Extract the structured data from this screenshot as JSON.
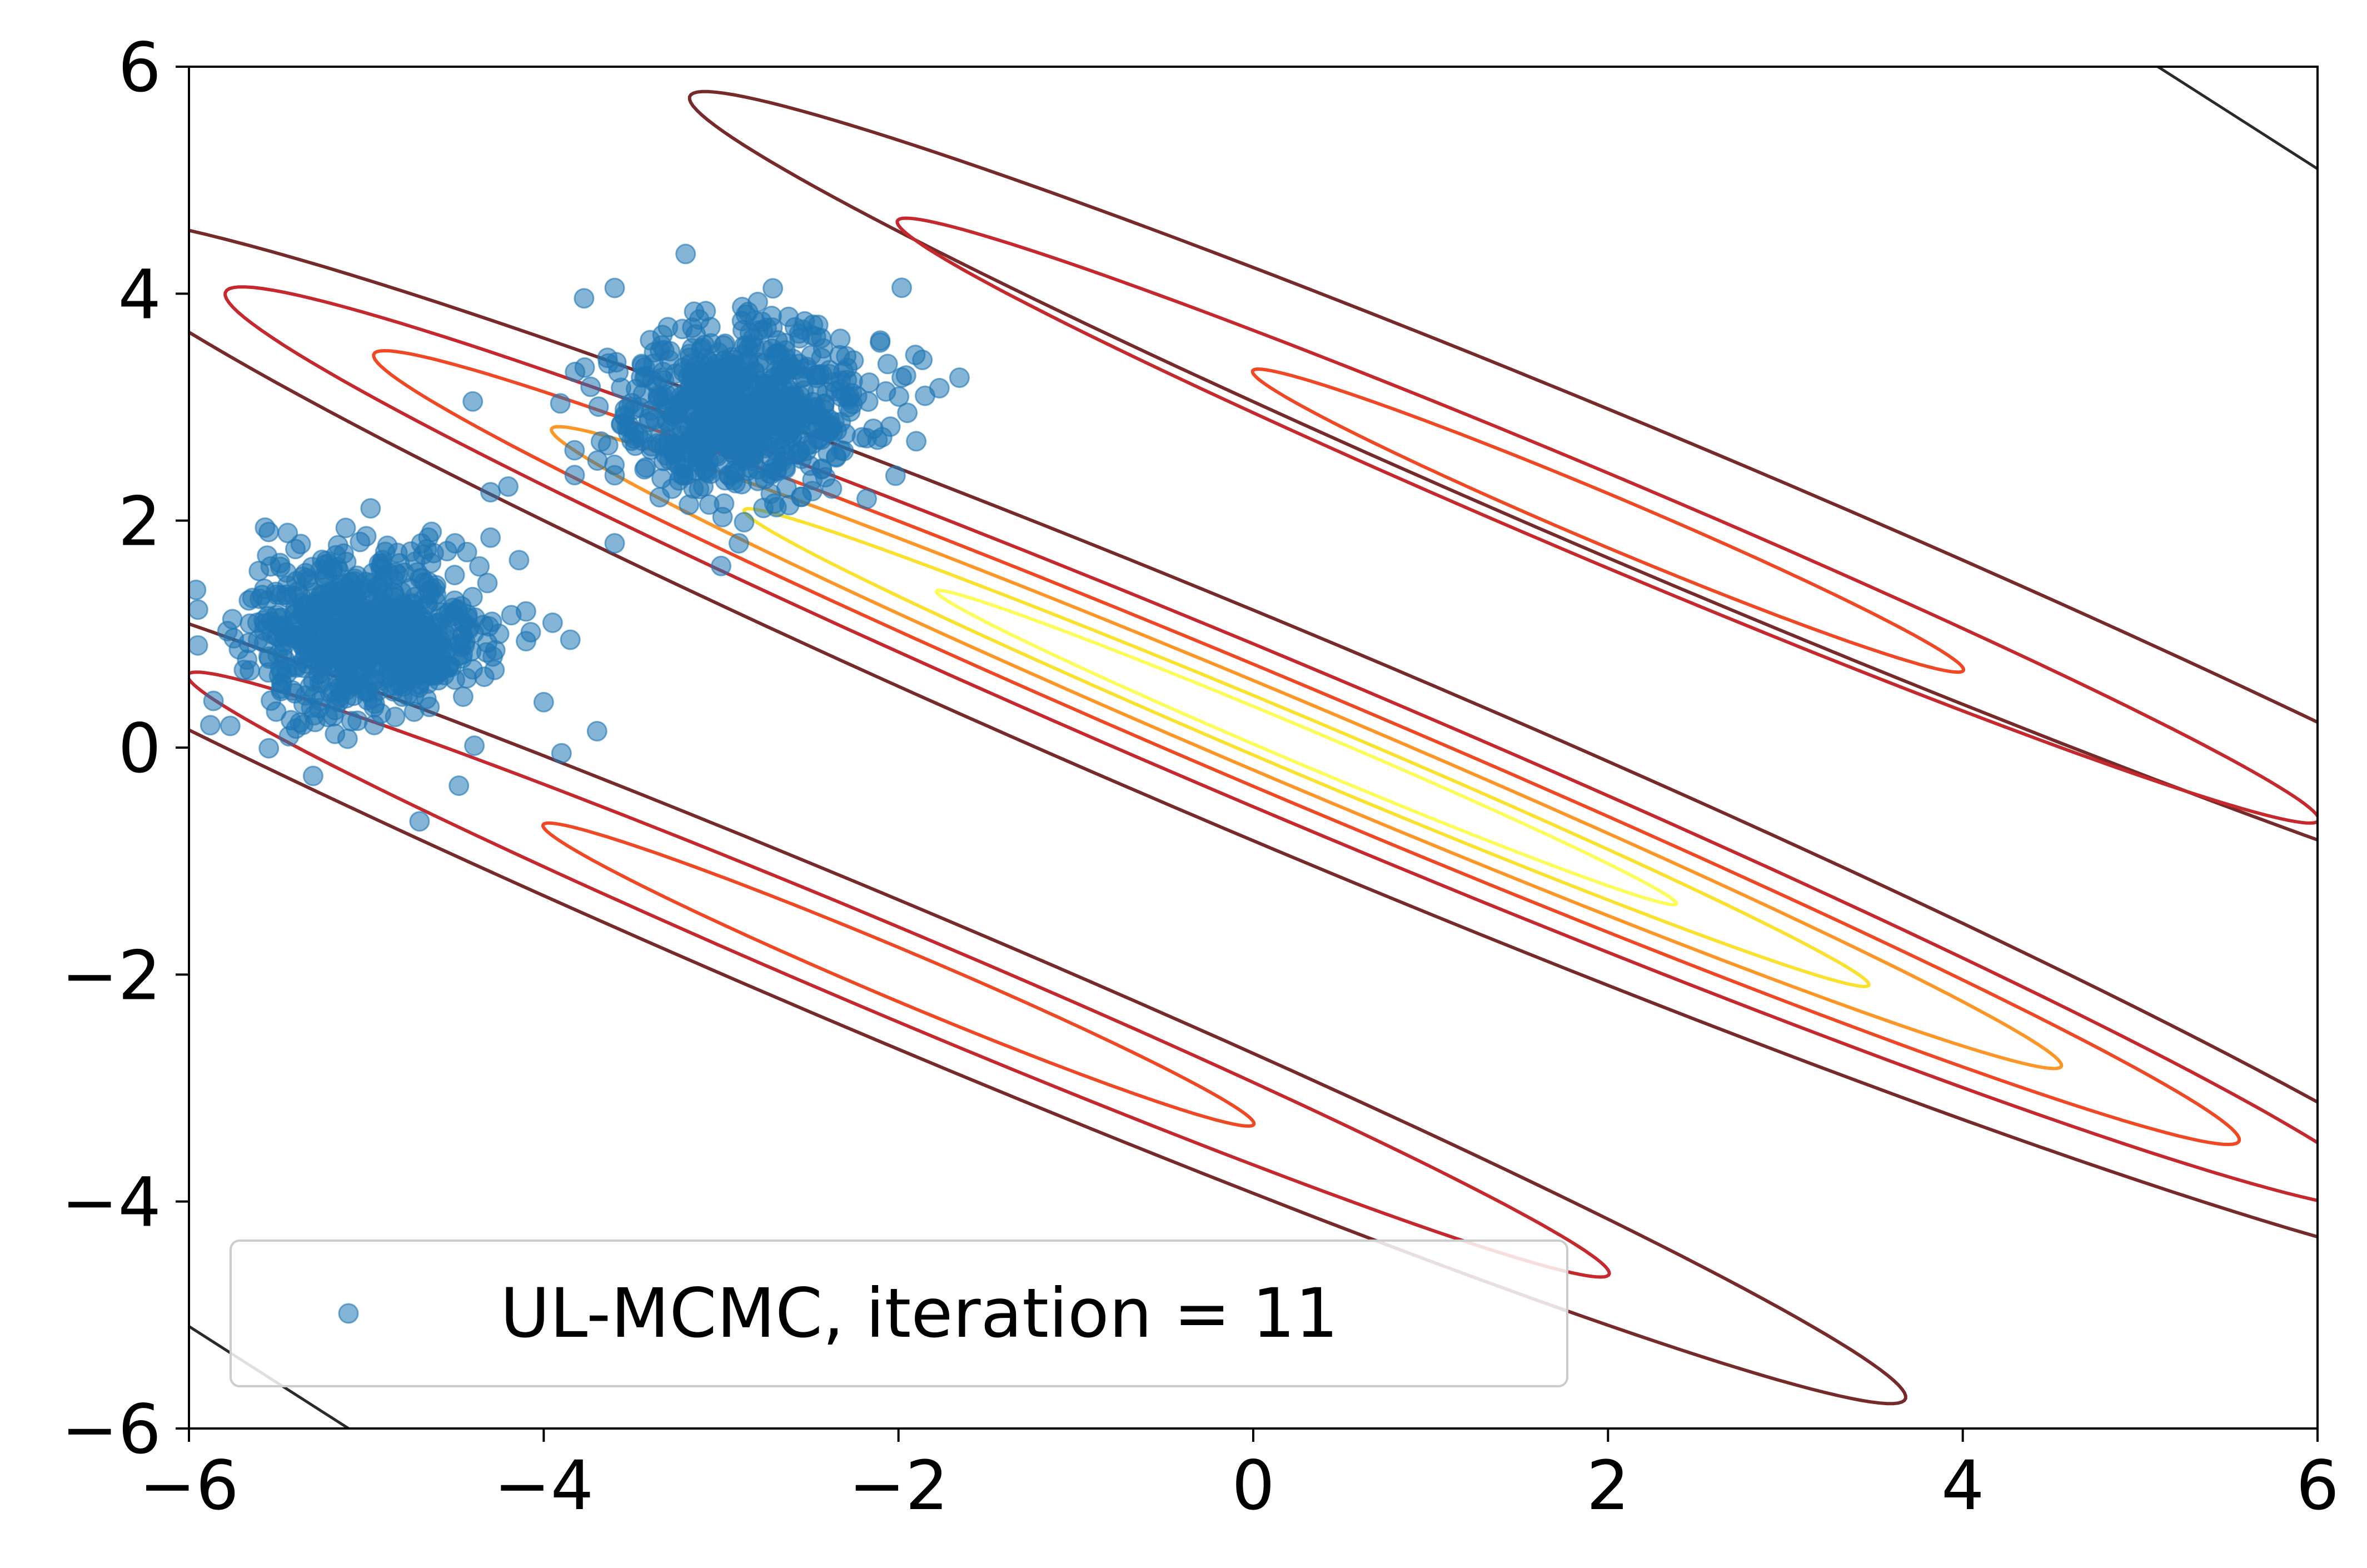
{
  "chart_data": {
    "type": "scatter",
    "title": "",
    "xlabel": "",
    "ylabel": "",
    "xlim": [
      -6,
      6
    ],
    "ylim": [
      -6,
      6
    ],
    "xticks": [
      -6,
      -4,
      -2,
      0,
      2,
      4,
      6
    ],
    "yticks": [
      -6,
      -4,
      -2,
      0,
      2,
      4,
      6
    ],
    "xtick_labels": [
      "−6",
      "−4",
      "−2",
      "0",
      "2",
      "4",
      "6"
    ],
    "ytick_labels": [
      "−6",
      "−4",
      "−2",
      "0",
      "2",
      "4",
      "6"
    ],
    "grid": false,
    "legend": {
      "position": "lower left",
      "entries": [
        "UL-MCMC, iteration = 11"
      ]
    },
    "series": [
      {
        "name": "UL-MCMC, iteration = 11",
        "type": "scatter",
        "color": "#1f77b4",
        "alpha": 0.55,
        "clusters": [
          {
            "center": [
              -5.0,
              1.0
            ],
            "spread": [
              0.35,
              0.35
            ],
            "count": 700
          },
          {
            "center": [
              -2.9,
              3.0
            ],
            "spread": [
              0.35,
              0.35
            ],
            "count": 700
          }
        ],
        "outliers": [
          [
            -5.95,
            0.9
          ],
          [
            -5.3,
            -0.25
          ],
          [
            -4.7,
            -0.65
          ],
          [
            -3.9,
            -0.05
          ],
          [
            -4.0,
            0.4
          ],
          [
            -3.2,
            4.35
          ],
          [
            -3.6,
            4.05
          ],
          [
            -3.0,
            1.6
          ],
          [
            -2.9,
            1.8
          ],
          [
            -1.95,
            2.95
          ],
          [
            -1.9,
            2.7
          ],
          [
            -1.85,
            3.1
          ],
          [
            -3.6,
            1.8
          ],
          [
            -4.3,
            2.25
          ],
          [
            -4.4,
            3.05
          ],
          [
            -4.2,
            2.3
          ],
          [
            -4.3,
            1.85
          ],
          [
            -4.5,
            1.8
          ],
          [
            -3.85,
            0.95
          ],
          [
            -3.95,
            1.1
          ],
          [
            -4.1,
            1.2
          ],
          [
            -3.6,
            2.4
          ],
          [
            -3.1,
            2.3
          ],
          [
            -2.7,
            2.15
          ],
          [
            -5.55,
            1.9
          ],
          [
            -5.4,
            1.75
          ],
          [
            -4.9,
            1.5
          ],
          [
            -4.65,
            1.85
          ]
        ]
      }
    ],
    "contours": [
      {
        "center": [
          0.3,
          0.0
        ],
        "a": 8.4,
        "b": 0.85,
        "angle_deg": 33.5,
        "color": "#762a2a"
      },
      {
        "center": [
          0.3,
          0.0
        ],
        "a": 7.3,
        "b": 0.6,
        "angle_deg": 33.5,
        "color": "#c5282d"
      },
      {
        "center": [
          0.3,
          0.0
        ],
        "a": 6.3,
        "b": 0.45,
        "angle_deg": 33.5,
        "color": "#f04824"
      },
      {
        "center": [
          0.3,
          0.0
        ],
        "a": 5.1,
        "b": 0.33,
        "angle_deg": 33.5,
        "color": "#fd9626"
      },
      {
        "center": [
          0.3,
          0.0
        ],
        "a": 3.8,
        "b": 0.22,
        "angle_deg": 33.5,
        "color": "#fae12d"
      },
      {
        "center": [
          0.3,
          0.0
        ],
        "a": 2.5,
        "b": 0.14,
        "angle_deg": 33.5,
        "color": "#fdfd5a"
      },
      {
        "center": [
          2.5,
          2.0
        ],
        "a": 6.8,
        "b": 0.55,
        "angle_deg": 33.5,
        "color": "#762a2a"
      },
      {
        "center": [
          2.0,
          2.0
        ],
        "a": 4.8,
        "b": 0.35,
        "angle_deg": 33.5,
        "color": "#c5282d"
      },
      {
        "center": [
          2.0,
          2.0
        ],
        "a": 2.4,
        "b": 0.2,
        "angle_deg": 33.5,
        "color": "#f04824"
      },
      {
        "center": [
          -2.0,
          -2.0
        ],
        "a": 6.8,
        "b": 0.55,
        "angle_deg": 33.5,
        "color": "#762a2a"
      },
      {
        "center": [
          -2.0,
          -2.0
        ],
        "a": 4.8,
        "b": 0.35,
        "angle_deg": 33.5,
        "color": "#c5282d"
      },
      {
        "center": [
          -2.0,
          -2.0
        ],
        "a": 2.4,
        "b": 0.2,
        "angle_deg": 33.5,
        "color": "#f04824"
      }
    ],
    "edge_lines": [
      {
        "points": [
          [
            5.1,
            6.0
          ],
          [
            6.0,
            5.1
          ]
        ],
        "color": "#2a2a2a"
      },
      {
        "points": [
          [
            -6.0,
            -5.1
          ],
          [
            -5.1,
            -6.0
          ]
        ],
        "color": "#2a2a2a"
      }
    ]
  }
}
